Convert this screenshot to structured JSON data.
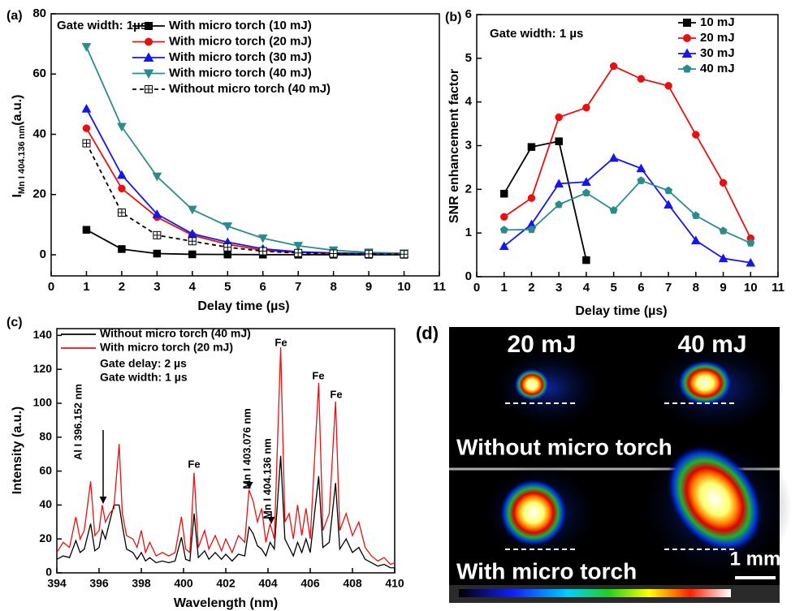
{
  "chart_data": [
    {
      "type": "line",
      "panel_label": "(a)",
      "note": "Gate width: 1µs",
      "xlabel": "Delay time (µs)",
      "ylabel": "I",
      "ylabel_sub": "Mn I 404.136 nm",
      "ylabel_unit": "(a.u.)",
      "xlim": [
        0,
        11
      ],
      "ylim": [
        -7,
        80
      ],
      "xticks": [
        0,
        1,
        2,
        3,
        4,
        5,
        6,
        7,
        8,
        9,
        10,
        11
      ],
      "yticks": [
        0,
        20,
        40,
        60,
        80
      ],
      "legend": "upper right",
      "x": [
        1,
        2,
        3,
        4,
        5,
        6,
        7,
        8,
        9,
        10
      ],
      "series": [
        {
          "name": "With micro torch (10 mJ)",
          "color": "#000000",
          "marker": "square",
          "linestyle": "solid",
          "values": [
            8.3,
            1.9,
            0.4,
            0.15,
            0.1,
            0.05,
            0.03,
            0.02,
            0.01,
            0.01
          ]
        },
        {
          "name": "With micro torch (20 mJ)",
          "color": "#e8110f",
          "marker": "circle",
          "linestyle": "solid",
          "values": [
            42,
            22,
            12.5,
            6.5,
            3.5,
            1.5,
            0.8,
            0.5,
            0.3,
            0.2
          ]
        },
        {
          "name": "With micro torch (30 mJ)",
          "color": "#1515ee",
          "marker": "triangle-up",
          "linestyle": "solid",
          "values": [
            48.5,
            26.5,
            13.5,
            7,
            4.2,
            2,
            1,
            0.6,
            0.4,
            0.3
          ]
        },
        {
          "name": "With micro torch (40 mJ)",
          "color": "#2a8c8c",
          "marker": "triangle-down",
          "linestyle": "solid",
          "values": [
            69,
            42.5,
            26,
            15,
            9.5,
            5.5,
            3,
            1.5,
            0.8,
            0.5
          ]
        },
        {
          "name": "Without micro torch (40 mJ)",
          "color": "#000000",
          "marker": "square-plus",
          "linestyle": "dashed",
          "values": [
            37,
            14,
            6.5,
            4.5,
            2.5,
            1.2,
            0.6,
            0.4,
            0.3,
            0.2
          ]
        }
      ]
    },
    {
      "type": "line",
      "panel_label": "(b)",
      "note": "Gate width: 1 µs",
      "xlabel": "Delay time (µs)",
      "ylabel": "SNR enhancement factor",
      "xlim": [
        0,
        11
      ],
      "ylim": [
        0,
        6
      ],
      "xticks": [
        0,
        1,
        2,
        3,
        4,
        5,
        6,
        7,
        8,
        9,
        10,
        11
      ],
      "yticks": [
        0,
        1,
        2,
        3,
        4,
        5,
        6
      ],
      "legend": "upper right",
      "x": [
        1,
        2,
        3,
        4,
        5,
        6,
        7,
        8,
        9,
        10
      ],
      "series": [
        {
          "name": "10 mJ",
          "color": "#000000",
          "marker": "square",
          "linestyle": "solid",
          "values": [
            1.9,
            2.97,
            3.1,
            0.38,
            null,
            null,
            null,
            null,
            null,
            null
          ]
        },
        {
          "name": "20 mJ",
          "color": "#e8110f",
          "marker": "circle",
          "linestyle": "solid",
          "values": [
            1.37,
            1.8,
            3.65,
            3.87,
            4.82,
            4.53,
            4.37,
            3.25,
            2.15,
            0.88
          ]
        },
        {
          "name": "30 mJ",
          "color": "#1515ee",
          "marker": "triangle-up",
          "linestyle": "solid",
          "values": [
            0.7,
            1.2,
            2.13,
            2.17,
            2.72,
            2.48,
            1.65,
            0.83,
            0.42,
            0.32
          ]
        },
        {
          "name": "40 mJ",
          "color": "#2a8c8c",
          "marker": "pentagon",
          "linestyle": "solid",
          "values": [
            1.07,
            1.08,
            1.65,
            1.92,
            1.52,
            2.2,
            1.97,
            1.4,
            1.05,
            0.77
          ]
        }
      ]
    },
    {
      "type": "line",
      "panel_label": "(c)",
      "notes": [
        "Gate delay: 2 µs",
        "Gate width: 1 µs"
      ],
      "xlabel": "Wavelength (nm)",
      "ylabel": "Intensity (a.u.)",
      "xlim": [
        394,
        410
      ],
      "ylim": [
        0,
        144
      ],
      "xticks": [
        394,
        396,
        398,
        400,
        402,
        404,
        406,
        408,
        410
      ],
      "yticks": [
        0,
        20,
        40,
        60,
        80,
        100,
        120,
        140
      ],
      "legend": "upper left",
      "annotations": [
        "Al I 396.152 nm",
        "Mn I 403.076 nm",
        "Mn I 404.136 nm",
        "Fe",
        "Fe",
        "Fe",
        "Fe"
      ],
      "x": [
        394.0,
        394.3,
        394.6,
        394.9,
        395.1,
        395.3,
        395.6,
        395.8,
        396.0,
        396.15,
        396.3,
        396.5,
        396.7,
        396.95,
        397.1,
        397.3,
        397.6,
        397.8,
        398.0,
        398.2,
        398.4,
        398.7,
        399.0,
        399.3,
        399.6,
        399.9,
        400.1,
        400.3,
        400.5,
        400.7,
        401.0,
        401.2,
        401.5,
        401.8,
        402.0,
        402.3,
        402.6,
        402.9,
        403.1,
        403.3,
        403.5,
        403.7,
        403.9,
        404.1,
        404.3,
        404.6,
        404.8,
        405.0,
        405.2,
        405.4,
        405.6,
        405.8,
        406.0,
        406.4,
        406.6,
        406.9,
        407.2,
        407.4,
        407.7,
        408.0,
        408.3,
        408.6,
        408.9,
        409.2,
        409.5,
        409.8,
        410.0
      ],
      "series": [
        {
          "name": "Without micro torch (40 mJ)",
          "color": "#000000",
          "marker": "none",
          "linestyle": "solid",
          "values": [
            8,
            10,
            9,
            19,
            12,
            14,
            29,
            13,
            15,
            25,
            20,
            30,
            40,
            40,
            28,
            14,
            12,
            8,
            12,
            7,
            9,
            6,
            7,
            6,
            7,
            21,
            8,
            7,
            35,
            9,
            13,
            8,
            12,
            8,
            11,
            7,
            11,
            10,
            27,
            23,
            16,
            14,
            10,
            18,
            14,
            69,
            20,
            15,
            10,
            18,
            12,
            20,
            12,
            57,
            15,
            18,
            53,
            14,
            20,
            12,
            15,
            8,
            6,
            4,
            5,
            3,
            3
          ]
        },
        {
          "name": "With micro torch (20 mJ)",
          "color": "#e8110f",
          "marker": "none",
          "linestyle": "solid",
          "values": [
            12,
            18,
            15,
            33,
            20,
            25,
            54,
            22,
            25,
            40,
            30,
            35,
            38,
            76,
            35,
            22,
            20,
            15,
            25,
            12,
            18,
            10,
            12,
            10,
            12,
            33,
            14,
            12,
            59,
            15,
            25,
            14,
            22,
            13,
            20,
            12,
            22,
            18,
            49,
            42,
            30,
            38,
            18,
            29,
            20,
            133,
            30,
            35,
            20,
            40,
            22,
            38,
            20,
            112,
            25,
            35,
            101,
            25,
            35,
            22,
            30,
            15,
            10,
            7,
            9,
            5,
            6
          ]
        }
      ]
    }
  ],
  "image_panel": {
    "label": "(d)",
    "columns": [
      "20 mJ",
      "40 mJ"
    ],
    "rows": [
      "Without micro torch",
      "With micro torch"
    ],
    "scale_bar": "1 mm"
  }
}
